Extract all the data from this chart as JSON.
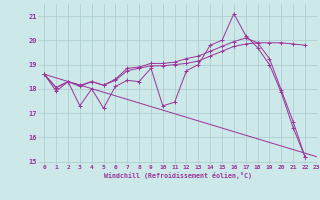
{
  "xlabel": "Windchill (Refroidissement éolien,°C)",
  "background_color": "#cce8e8",
  "grid_color": "#aacccc",
  "line_color": "#993399",
  "x": [
    0,
    1,
    2,
    3,
    4,
    5,
    6,
    7,
    8,
    9,
    10,
    11,
    12,
    13,
    14,
    15,
    16,
    17,
    18,
    19,
    20,
    21,
    22,
    23
  ],
  "series1": [
    18.6,
    17.9,
    18.3,
    17.3,
    18.0,
    17.2,
    18.1,
    18.35,
    18.3,
    18.85,
    17.3,
    17.45,
    18.75,
    19.0,
    19.8,
    20.0,
    21.1,
    20.2,
    19.7,
    19.0,
    17.85,
    16.4,
    15.2,
    null
  ],
  "series2": [
    18.6,
    18.05,
    18.3,
    18.1,
    18.3,
    18.15,
    18.35,
    18.75,
    18.85,
    18.95,
    18.95,
    19.0,
    19.05,
    19.15,
    19.35,
    19.55,
    19.75,
    19.85,
    19.9,
    19.9,
    19.9,
    19.85,
    19.8,
    null
  ],
  "series3": [
    18.6,
    18.05,
    18.3,
    18.15,
    18.3,
    18.15,
    18.4,
    18.85,
    18.9,
    19.05,
    19.05,
    19.1,
    19.25,
    19.35,
    19.55,
    19.75,
    19.95,
    20.1,
    19.9,
    19.25,
    17.95,
    16.65,
    15.2,
    null
  ],
  "series4_x": [
    0,
    23
  ],
  "series4_y": [
    18.6,
    15.2
  ],
  "ylim": [
    14.9,
    21.5
  ],
  "xlim": [
    -0.5,
    23
  ],
  "yticks": [
    15,
    16,
    17,
    18,
    19,
    20,
    21
  ],
  "xticks": [
    0,
    1,
    2,
    3,
    4,
    5,
    6,
    7,
    8,
    9,
    10,
    11,
    12,
    13,
    14,
    15,
    16,
    17,
    18,
    19,
    20,
    21,
    22,
    23
  ]
}
